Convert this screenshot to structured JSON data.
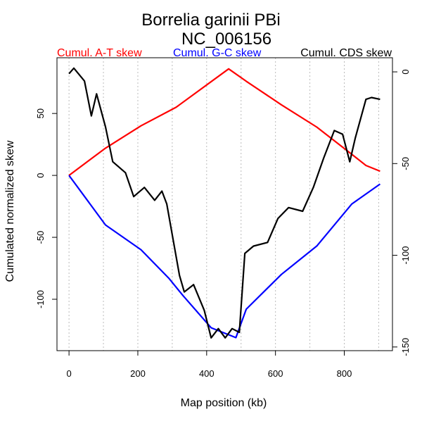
{
  "chart_data": {
    "type": "line",
    "title": "Borrelia garinii PBi",
    "subtitle": "NC_006156",
    "xlabel": "Map position (kb)",
    "ylabel": "Cumulated normalized skew",
    "xlim": [
      -35,
      940
    ],
    "ylim": [
      -141.5,
      95
    ],
    "ylim_right": [
      -152,
      7.7
    ],
    "x_ticks": [
      0,
      200,
      400,
      600,
      800
    ],
    "y_ticks": [
      -100,
      -50,
      0,
      50
    ],
    "y_ticks_right": [
      0,
      -50,
      -100,
      -150
    ],
    "grid_x": [
      0,
      100,
      200,
      300,
      400,
      500,
      600,
      700,
      800,
      900
    ],
    "legend": [
      {
        "label": "Cumul. A-T skew",
        "color": "#ff0000"
      },
      {
        "label": "Cumul. G-C skew",
        "color": "#0000ff"
      },
      {
        "label": "Cumul. CDS skew",
        "color": "#000000"
      }
    ],
    "series": [
      {
        "name": "Cumul. A-T skew",
        "color": "#ff0000",
        "axis": "left",
        "x": [
          0,
          106,
          209,
          311,
          464,
          515,
          617,
          720,
          822,
          863,
          904
        ],
        "y": [
          0,
          22,
          40,
          55,
          86,
          76,
          57,
          39,
          17,
          8,
          3.4
        ]
      },
      {
        "name": "Cumul. G-C skew",
        "color": "#0000ff",
        "axis": "left",
        "x": [
          0,
          106,
          209,
          290,
          331,
          413,
          485,
          515,
          617,
          720,
          822,
          904
        ],
        "y": [
          0,
          -40,
          -60,
          -83,
          -97,
          -123,
          -131,
          -108,
          -80,
          -57,
          -23,
          -7
        ]
      },
      {
        "name": "Cumul. CDS skew",
        "color": "#000000",
        "axis": "right",
        "x": [
          0,
          14,
          45,
          65,
          80,
          106,
          127,
          164,
          188,
          219,
          249,
          270,
          284,
          321,
          335,
          362,
          393,
          413,
          434,
          454,
          474,
          495,
          511,
          536,
          577,
          607,
          638,
          679,
          710,
          740,
          771,
          795,
          816,
          832,
          863,
          879,
          904
        ],
        "y": [
          -1,
          2,
          -5,
          -24,
          -12,
          -30,
          -49,
          -55,
          -68,
          -63,
          -70,
          -65,
          -72,
          -111,
          -120,
          -116,
          -130,
          -145,
          -140,
          -145,
          -140,
          -142,
          -99,
          -95,
          -93,
          -80,
          -74,
          -76,
          -63,
          -47,
          -32,
          -34,
          -49,
          -36,
          -15,
          -14,
          -15
        ]
      }
    ]
  }
}
